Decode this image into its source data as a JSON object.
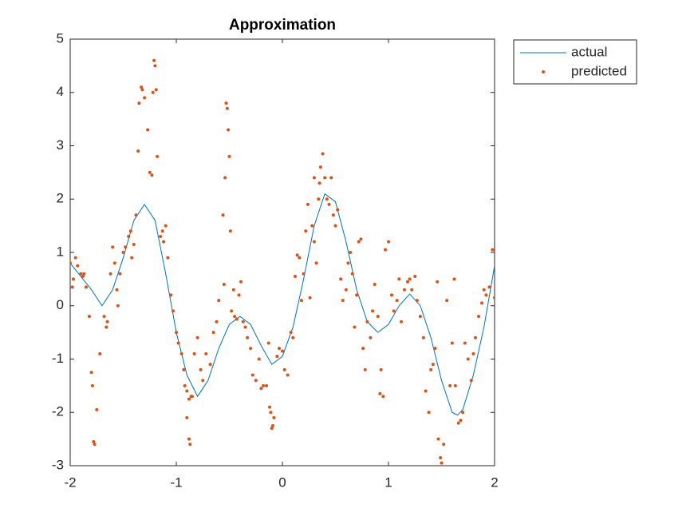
{
  "chart_data": {
    "type": "line",
    "title": "Approximation",
    "xlim": [
      -2,
      2
    ],
    "xticks": [
      -2,
      -1,
      0,
      1,
      2
    ],
    "ylim": [
      -3,
      5
    ],
    "yticks": [
      -3,
      -2,
      -1,
      0,
      1,
      2,
      3,
      4,
      5
    ],
    "legend": "northeastoutside",
    "box": true,
    "series": [
      {
        "name": "actual",
        "type": "line",
        "color": "#0072BD",
        "x": [
          -2,
          -1.9,
          -1.8,
          -1.7,
          -1.6,
          -1.5,
          -1.4,
          -1.3,
          -1.2,
          -1.1,
          -1,
          -0.9,
          -0.8,
          -0.7,
          -0.6,
          -0.5,
          -0.4,
          -0.3,
          -0.2,
          -0.1,
          0,
          0.1,
          0.2,
          0.3,
          0.4,
          0.5,
          0.6,
          0.7,
          0.8,
          0.9,
          1,
          1.1,
          1.2,
          1.3,
          1.4,
          1.5,
          1.6,
          1.65,
          1.7,
          1.8,
          1.9,
          2
        ],
        "values": [
          0.8,
          0.55,
          0.3,
          0,
          0.3,
          0.9,
          1.6,
          1.9,
          1.6,
          0.6,
          -0.5,
          -1.3,
          -1.7,
          -1.4,
          -0.8,
          -0.35,
          -0.2,
          -0.35,
          -0.75,
          -1.1,
          -0.95,
          -0.4,
          0.5,
          1.5,
          2.1,
          1.95,
          1.2,
          0.3,
          -0.3,
          -0.5,
          -0.35,
          0,
          0.22,
          0,
          -0.6,
          -1.4,
          -2,
          -2.05,
          -1.95,
          -1.3,
          -0.4,
          0.75
        ]
      },
      {
        "name": "predicted",
        "type": "scatter",
        "color": "#D95319",
        "x": [
          -2,
          -1.98,
          -1.97,
          -1.95,
          -1.93,
          -1.9,
          -1.88,
          -1.87,
          -1.85,
          -1.68,
          -1.66,
          -1.65,
          -1.62,
          -1.6,
          -1.58,
          -1.56,
          -1.55,
          -1.53,
          -1.5,
          -1.48,
          -1.45,
          -1.43,
          -1.42,
          -1.4,
          -1.38,
          -1.15,
          -1.13,
          -1.12,
          -1.1,
          -1.08,
          -1.05,
          -1.03,
          -1,
          -0.98,
          -0.95,
          -0.93,
          -0.92,
          -0.9,
          -0.88,
          -0.85,
          -0.83,
          -0.8,
          -0.77,
          -0.75,
          -0.72,
          -0.68,
          -0.65,
          -0.62,
          -0.6,
          -0.55,
          -0.48,
          -0.46,
          -0.45,
          -0.43,
          -0.41,
          -0.39,
          -0.37,
          -0.35,
          -0.33,
          -0.3,
          -0.28,
          -0.25,
          -0.22,
          -0.2,
          -0.18,
          -0.15,
          -0.13,
          -0.05,
          -0.03,
          0,
          0.02,
          0.05,
          0.08,
          0.1,
          0.12,
          0.14,
          0.16,
          0.18,
          0.2,
          0.22,
          0.24,
          0.26,
          0.28,
          0.3,
          0.32,
          0.34,
          0.4,
          0.42,
          0.44,
          0.46,
          0.48,
          0.5,
          0.52,
          0.55,
          0.57,
          0.6,
          0.62,
          0.64,
          0.66,
          0.68,
          0.7,
          0.72,
          0.74,
          0.76,
          0.78,
          0.8,
          0.83,
          0.85,
          0.87,
          0.9,
          0.93,
          1.03,
          1.05,
          1.08,
          1.1,
          1.12,
          1.15,
          1.18,
          1.2,
          1.22,
          1.25,
          1.27,
          1.3,
          1.33,
          1.35,
          1.38,
          1.4,
          1.42,
          1.44,
          1.46,
          1.55,
          1.58,
          1.6,
          1.62,
          1.63,
          1.66,
          1.68,
          1.7,
          1.72,
          1.75,
          1.78,
          1.8,
          1.82,
          1.85,
          1.88,
          1.9,
          1.92,
          1.95,
          1.98,
          2,
          -1.33,
          -1.32,
          -1.3,
          -1.27,
          -1.25,
          -1.23,
          -1.22,
          -1.21,
          -1.2,
          -1.19,
          -1.18,
          -1.35,
          -1.36,
          -0.54,
          -0.53,
          -0.52,
          -0.51,
          -0.5,
          -0.49,
          -0.56,
          -1.78,
          -1.77,
          -1.75,
          -1.8,
          -1.79,
          -1.72,
          -1.82,
          -0.88,
          -0.87,
          -0.9,
          -0.86,
          -0.1,
          -0.09,
          -0.08,
          -0.11,
          -0.12,
          1.47,
          1.49,
          1.5,
          1.52,
          0.38,
          0.36,
          0.3,
          0.35,
          1,
          0.97,
          0.95,
          0.92
        ],
        "values": [
          0.8,
          0.35,
          0.5,
          0.9,
          0.75,
          0.6,
          0.55,
          0.6,
          0.35,
          -0.2,
          -0.4,
          -0.3,
          0.6,
          1.1,
          0.8,
          0.3,
          0,
          0.6,
          1,
          1.1,
          1.3,
          1.4,
          0.9,
          1.15,
          1.7,
          1.3,
          1.4,
          1.2,
          1.5,
          0.9,
          0.2,
          -0.1,
          -0.5,
          -0.7,
          -0.9,
          -1.2,
          -1.5,
          -1.6,
          -1.75,
          -1.7,
          -0.9,
          -0.6,
          -1.2,
          -1.4,
          -0.9,
          -1.1,
          -0.5,
          -0.3,
          0.1,
          0.4,
          -0.1,
          0.3,
          -0.2,
          -0.25,
          0.2,
          0.45,
          -0.3,
          -0.4,
          -0.6,
          -0.8,
          -1.3,
          -1.4,
          -1,
          -1.55,
          -1.5,
          -1.5,
          -0.7,
          -0.95,
          -0.8,
          -0.85,
          -1.2,
          -1.3,
          -0.5,
          -0.6,
          0.55,
          0.95,
          0.9,
          0.1,
          0.6,
          1.4,
          1.9,
          0.15,
          1.5,
          1.2,
          0.8,
          2,
          2.4,
          2,
          1.9,
          2.4,
          1.7,
          1.5,
          1.8,
          0.5,
          0.1,
          0.3,
          0.8,
          1,
          0.6,
          -0.4,
          0.2,
          1.2,
          1.25,
          -0.8,
          -1.2,
          -0.3,
          -0.6,
          -0.1,
          0.4,
          -0.2,
          -1.2,
          0.2,
          -0.1,
          0.1,
          0.5,
          -0.3,
          0.3,
          0.45,
          0.5,
          0.3,
          0.55,
          0.1,
          -0.2,
          -0.6,
          -1.6,
          -2,
          -1.2,
          -1.1,
          -0.8,
          0.45,
          0.1,
          -1.5,
          -0.7,
          0.5,
          -1.5,
          -2.2,
          -2.15,
          -2,
          -0.7,
          -1,
          -1.4,
          -0.9,
          -0.6,
          -0.2,
          0.05,
          0.3,
          0.2,
          0.35,
          1.05,
          0.15,
          4.1,
          4.05,
          3.9,
          3.3,
          2.5,
          2.45,
          4,
          4.6,
          4.5,
          4.05,
          2.8,
          3.8,
          2.9,
          2.4,
          3.8,
          3.7,
          3.3,
          2.8,
          1.4,
          1.7,
          -2.55,
          -2.6,
          -1.95,
          -1.25,
          -1.5,
          -0.9,
          -0.2,
          -2.5,
          -2.6,
          -2.1,
          -1.7,
          -2.3,
          -2.25,
          -2.1,
          -2,
          -1.9,
          -2.5,
          -2.85,
          -2.95,
          -2.6,
          2.85,
          2.6,
          2.4,
          2.3,
          1.2,
          1.05,
          -1.7,
          -1.65
        ]
      }
    ]
  }
}
